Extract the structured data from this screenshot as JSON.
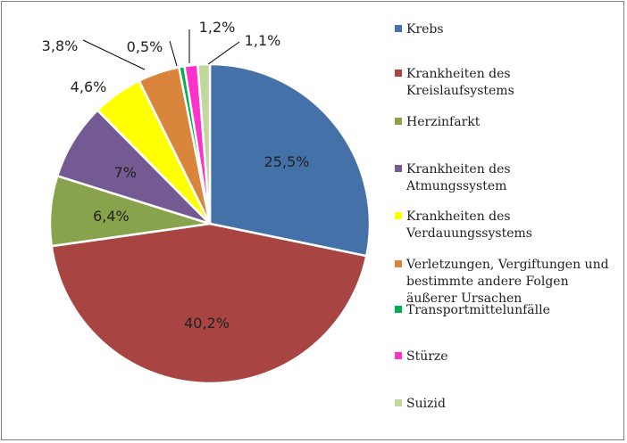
{
  "chart_data": {
    "type": "pie",
    "title": "",
    "legend_position": "right",
    "slices": [
      {
        "label": [
          "Krebs"
        ],
        "value": 25.5,
        "display": "25,5%",
        "color": "#4471a7"
      },
      {
        "label": [
          "Krankheiten des",
          "Kreislaufsystems"
        ],
        "value": 40.2,
        "display": "40,2%",
        "color": "#a84543"
      },
      {
        "label": [
          "Herzinfarkt"
        ],
        "value": 6.4,
        "display": "6,4%",
        "color": "#88a34c"
      },
      {
        "label": [
          "Krankheiten des",
          "Atmungssystem"
        ],
        "value": 7,
        "display": "7%",
        "color": "#735a93"
      },
      {
        "label": [
          "Krankheiten des",
          "Verdauungssystems"
        ],
        "value": 4.6,
        "display": "4,6%",
        "color": "#ffff00"
      },
      {
        "label": [
          "Verletzungen, Vergiftungen und",
          "bestimmte andere Folgen",
          "äußerer Ursachen"
        ],
        "value": 3.8,
        "display": "3,8%",
        "color": "#d9853b"
      },
      {
        "label": [
          "Transportmittelunfälle"
        ],
        "value": 0.5,
        "display": "0,5%",
        "color": "#00b050"
      },
      {
        "label": [
          "Stürze"
        ],
        "value": 1.2,
        "display": "1,2%",
        "color": "#ff33cc"
      },
      {
        "label": [
          "Suizid"
        ],
        "value": 1.1,
        "display": "1,1%",
        "color": "#c3d69b"
      }
    ]
  }
}
